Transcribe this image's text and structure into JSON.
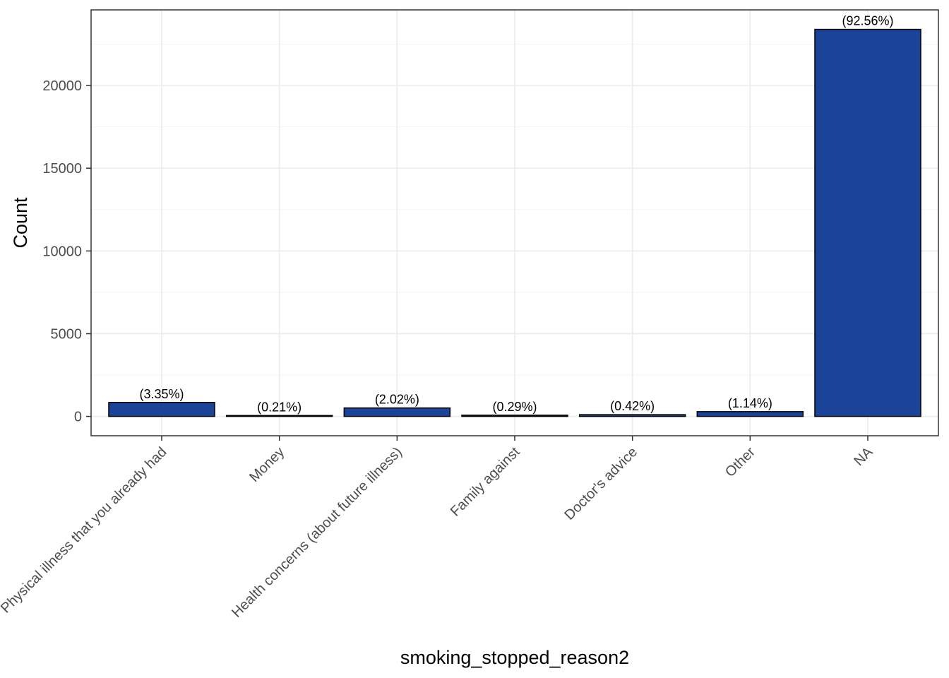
{
  "chart_data": {
    "type": "bar",
    "title": "",
    "xlabel": "smoking_stopped_reason2",
    "ylabel": "Count",
    "categories": [
      "Physical illness that you already had",
      "Money",
      "Health concerns (about future illness)",
      "Family against",
      "Doctor's advice",
      "Other",
      "NA"
    ],
    "values": [
      846,
      53,
      511,
      73,
      106,
      288,
      23393
    ],
    "labels": [
      "(3.35%)",
      "(0.21%)",
      "(2.02%)",
      "(0.29%)",
      "(0.42%)",
      "(1.14%)",
      "(92.56%)"
    ],
    "yticks": [
      0,
      5000,
      10000,
      15000,
      20000
    ],
    "ytick_labels": [
      "0",
      "5000",
      "10000",
      "15000",
      "20000"
    ],
    "ylim": [
      -1170,
      24570
    ],
    "grid": true,
    "legend": "none",
    "colors": {
      "bar_fill": "#1b4499",
      "bar_stroke": "#000000",
      "grid_major": "#ebebeb",
      "grid_minor": "#f5f5f5",
      "panel_border": "#333333"
    }
  }
}
